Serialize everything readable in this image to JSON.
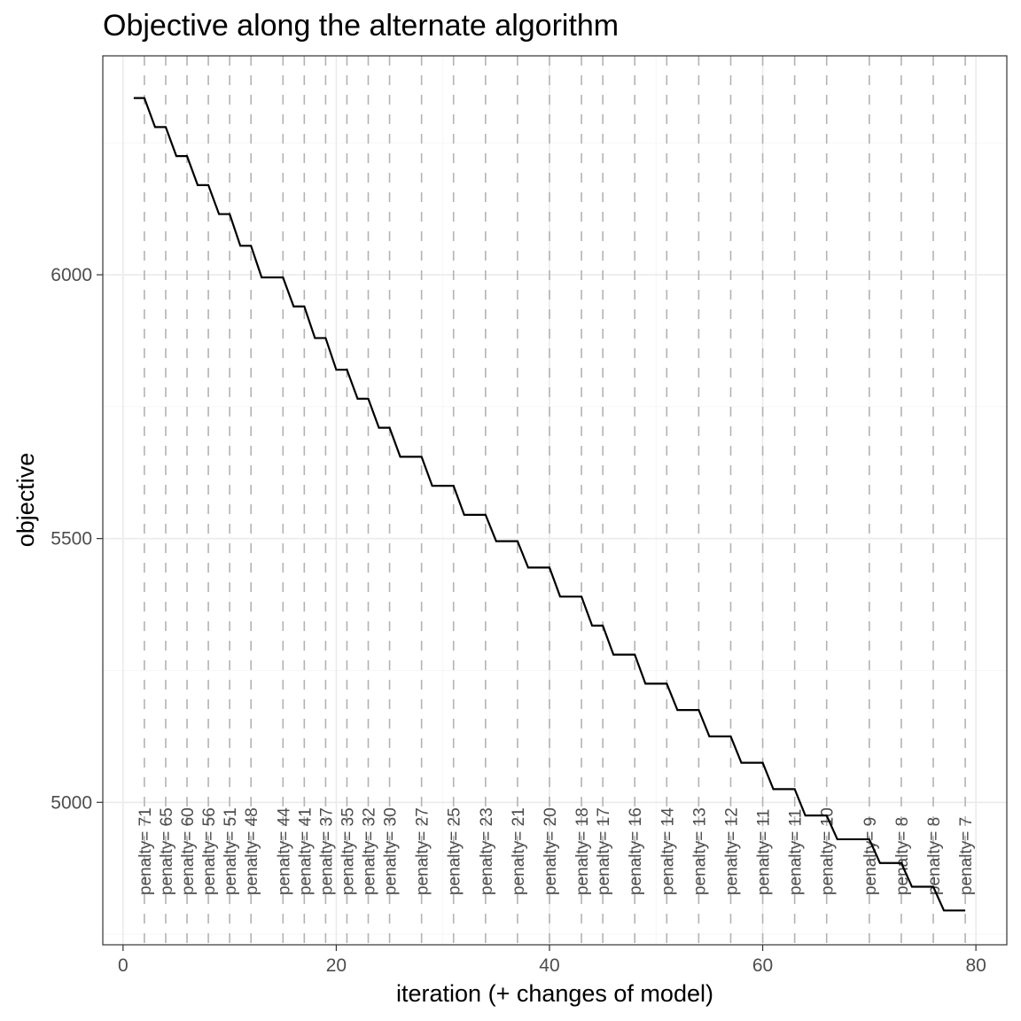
{
  "chart_data": {
    "type": "line",
    "title": "Objective along the alternate algorithm",
    "xlabel": "iteration (+ changes of model)",
    "ylabel": "objective",
    "xlim": [
      -1.9,
      82.9
    ],
    "ylim": [
      4730,
      6415
    ],
    "xticks": [
      0,
      20,
      40,
      60,
      80
    ],
    "yticks": [
      5000,
      5500,
      6000
    ],
    "grid": true,
    "legend": "none",
    "line_color": "#000000",
    "marker_line_color": "#b3b3b3",
    "x": [
      1,
      2,
      3,
      4,
      5,
      6,
      7,
      8,
      9,
      10,
      11,
      12,
      13,
      14,
      15,
      16,
      17,
      18,
      19,
      20,
      21,
      22,
      23,
      24,
      25,
      26,
      27,
      28,
      29,
      30,
      31,
      32,
      33,
      34,
      35,
      36,
      37,
      38,
      39,
      40,
      41,
      42,
      43,
      44,
      45,
      46,
      47,
      48,
      49,
      50,
      51,
      52,
      53,
      54,
      55,
      56,
      57,
      58,
      59,
      60,
      61,
      62,
      63,
      64,
      65,
      66,
      67,
      68,
      69,
      70,
      71,
      72,
      73,
      74,
      75,
      76,
      77,
      78,
      79
    ],
    "y": [
      6335,
      6335,
      6280,
      6280,
      6225,
      6225,
      6170,
      6170,
      6115,
      6115,
      6055,
      6055,
      5995,
      5995,
      5995,
      5940,
      5940,
      5880,
      5880,
      5820,
      5820,
      5765,
      5765,
      5710,
      5710,
      5655,
      5655,
      5655,
      5600,
      5600,
      5600,
      5545,
      5545,
      5545,
      5495,
      5495,
      5495,
      5445,
      5445,
      5445,
      5390,
      5390,
      5390,
      5335,
      5335,
      5280,
      5280,
      5280,
      5225,
      5225,
      5225,
      5175,
      5175,
      5175,
      5125,
      5125,
      5125,
      5075,
      5075,
      5075,
      5025,
      5025,
      5025,
      4975,
      4975,
      4975,
      4930,
      4930,
      4930,
      4930,
      4885,
      4885,
      4885,
      4840,
      4840,
      4840,
      4795,
      4795,
      4795
    ],
    "model_changes": [
      {
        "x": 2,
        "label": "penalty= 71"
      },
      {
        "x": 4,
        "label": "penalty= 65"
      },
      {
        "x": 6,
        "label": "penalty= 60"
      },
      {
        "x": 8,
        "label": "penalty= 56"
      },
      {
        "x": 10,
        "label": "penalty= 51"
      },
      {
        "x": 12,
        "label": "penalty= 48"
      },
      {
        "x": 15,
        "label": "penalty= 44"
      },
      {
        "x": 17,
        "label": "penalty= 41"
      },
      {
        "x": 19,
        "label": "penalty= 37"
      },
      {
        "x": 21,
        "label": "penalty= 35"
      },
      {
        "x": 23,
        "label": "penalty= 32"
      },
      {
        "x": 25,
        "label": "penalty= 30"
      },
      {
        "x": 28,
        "label": "penalty= 27"
      },
      {
        "x": 31,
        "label": "penalty= 25"
      },
      {
        "x": 34,
        "label": "penalty= 23"
      },
      {
        "x": 37,
        "label": "penalty= 21"
      },
      {
        "x": 40,
        "label": "penalty= 20"
      },
      {
        "x": 43,
        "label": "penalty= 18"
      },
      {
        "x": 45,
        "label": "penalty= 17"
      },
      {
        "x": 48,
        "label": "penalty= 16"
      },
      {
        "x": 51,
        "label": "penalty= 14"
      },
      {
        "x": 54,
        "label": "penalty= 13"
      },
      {
        "x": 57,
        "label": "penalty= 12"
      },
      {
        "x": 60,
        "label": "penalty= 11"
      },
      {
        "x": 63,
        "label": "penalty= 11"
      },
      {
        "x": 66,
        "label": "penalty= 10"
      },
      {
        "x": 70,
        "label": "penalty= 9"
      },
      {
        "x": 73,
        "label": "penalty= 8"
      },
      {
        "x": 76,
        "label": "penalty= 8"
      },
      {
        "x": 79,
        "label": "penalty= 7"
      }
    ]
  }
}
